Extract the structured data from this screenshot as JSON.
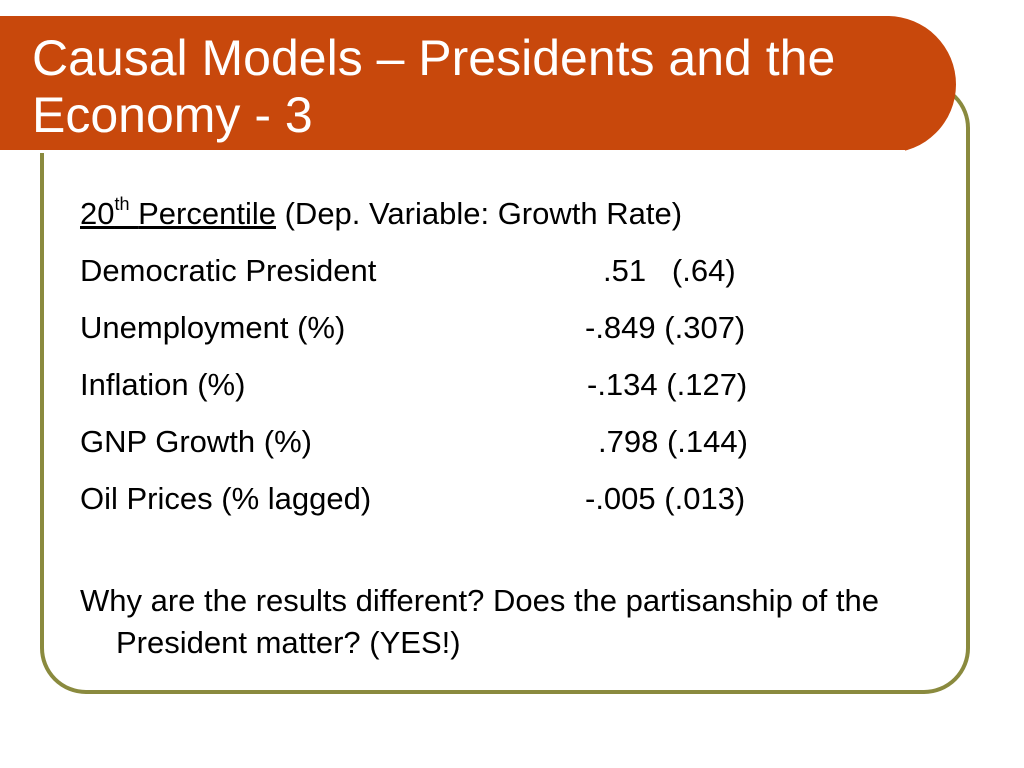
{
  "slide": {
    "title": "Causal Models – Presidents and the Economy - 3",
    "heading": {
      "ordinal_number": "20",
      "ordinal_suffix": "th",
      "percentile_word": "Percentile",
      "dep_variable": "(Dep. Variable: Growth Rate)"
    },
    "rows": [
      {
        "label": "Democratic President",
        "value": ".51   (.64)"
      },
      {
        "label": "Unemployment (%)",
        "value": "-.849 (.307)"
      },
      {
        "label": "Inflation (%)",
        "value": "-.134 (.127)"
      },
      {
        "label": "GNP Growth (%)",
        "value": ".798 (.144)"
      },
      {
        "label": "Oil Prices (% lagged)",
        "value": "-.005 (.013)"
      }
    ],
    "question": "Why are the results different? Does the partisanship of the President matter? (YES!)"
  },
  "colors": {
    "title_bar": "#c8480c",
    "frame_border": "#8a8a3e",
    "title_text": "#ffffff",
    "body_text": "#000000"
  }
}
